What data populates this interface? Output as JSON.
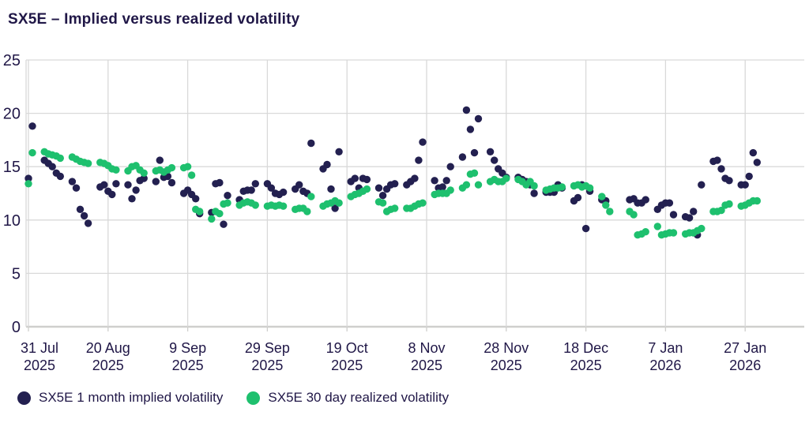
{
  "title": "SX5E – Implied versus realized volatility",
  "colors": {
    "implied": "#232050",
    "realized": "#1ec06e",
    "grid": "#d9d9d9",
    "axis_line": "#cfcfcd",
    "text": "#201747",
    "background": "#ffffff"
  },
  "legend": {
    "implied_label": "SX5E 1 month implied volatility",
    "realized_label": "SX5E 30 day realized volatility"
  },
  "chart_data": {
    "type": "scatter",
    "title": "SX5E – Implied versus realized volatility",
    "xlabel": "",
    "ylabel": "",
    "ylim": [
      0,
      25
    ],
    "y_ticks": [
      0,
      5,
      10,
      15,
      20,
      25
    ],
    "grid": true,
    "legend_position": "bottom",
    "x_tick_dates": [
      "2025-07-31",
      "2025-08-20",
      "2025-09-09",
      "2025-09-29",
      "2025-10-19",
      "2025-11-08",
      "2025-11-28",
      "2025-12-18",
      "2026-01-07",
      "2026-01-27"
    ],
    "x_tick_labels": [
      {
        "line1": "31 Jul",
        "line2": "2025"
      },
      {
        "line1": "20 Aug",
        "line2": "2025"
      },
      {
        "line1": "9 Sep",
        "line2": "2025"
      },
      {
        "line1": "29 Sep",
        "line2": "2025"
      },
      {
        "line1": "19 Oct",
        "line2": "2025"
      },
      {
        "line1": "8 Nov",
        "line2": "2025"
      },
      {
        "line1": "28 Nov",
        "line2": "2025"
      },
      {
        "line1": "18 Dec",
        "line2": "2025"
      },
      {
        "line1": "7 Jan",
        "line2": "2026"
      },
      {
        "line1": "27 Jan",
        "line2": "2026"
      }
    ],
    "x": [
      "2025-07-31",
      "2025-08-01",
      "2025-08-04",
      "2025-08-05",
      "2025-08-06",
      "2025-08-07",
      "2025-08-08",
      "2025-08-11",
      "2025-08-12",
      "2025-08-13",
      "2025-08-14",
      "2025-08-15",
      "2025-08-18",
      "2025-08-19",
      "2025-08-20",
      "2025-08-21",
      "2025-08-22",
      "2025-08-25",
      "2025-08-26",
      "2025-08-27",
      "2025-08-28",
      "2025-08-29",
      "2025-09-01",
      "2025-09-02",
      "2025-09-03",
      "2025-09-04",
      "2025-09-05",
      "2025-09-08",
      "2025-09-09",
      "2025-09-10",
      "2025-09-11",
      "2025-09-12",
      "2025-09-15",
      "2025-09-16",
      "2025-09-17",
      "2025-09-18",
      "2025-09-19",
      "2025-09-22",
      "2025-09-23",
      "2025-09-24",
      "2025-09-25",
      "2025-09-26",
      "2025-09-29",
      "2025-09-30",
      "2025-10-01",
      "2025-10-02",
      "2025-10-03",
      "2025-10-06",
      "2025-10-07",
      "2025-10-08",
      "2025-10-09",
      "2025-10-10",
      "2025-10-13",
      "2025-10-14",
      "2025-10-15",
      "2025-10-16",
      "2025-10-17",
      "2025-10-20",
      "2025-10-21",
      "2025-10-22",
      "2025-10-23",
      "2025-10-24",
      "2025-10-27",
      "2025-10-28",
      "2025-10-29",
      "2025-10-30",
      "2025-10-31",
      "2025-11-03",
      "2025-11-04",
      "2025-11-05",
      "2025-11-06",
      "2025-11-07",
      "2025-11-10",
      "2025-11-11",
      "2025-11-12",
      "2025-11-13",
      "2025-11-14",
      "2025-11-17",
      "2025-11-18",
      "2025-11-19",
      "2025-11-20",
      "2025-11-21",
      "2025-11-24",
      "2025-11-25",
      "2025-11-26",
      "2025-11-27",
      "2025-11-28",
      "2025-12-01",
      "2025-12-02",
      "2025-12-03",
      "2025-12-04",
      "2025-12-05",
      "2025-12-08",
      "2025-12-09",
      "2025-12-10",
      "2025-12-11",
      "2025-12-12",
      "2025-12-15",
      "2025-12-16",
      "2025-12-17",
      "2025-12-18",
      "2025-12-19",
      "2025-12-22",
      "2025-12-23",
      "2025-12-24",
      "2025-12-25",
      "2025-12-26",
      "2025-12-29",
      "2025-12-30",
      "2025-12-31",
      "2026-01-01",
      "2026-01-02",
      "2026-01-05",
      "2026-01-06",
      "2026-01-07",
      "2026-01-08",
      "2026-01-09",
      "2026-01-12",
      "2026-01-13",
      "2026-01-14",
      "2026-01-15",
      "2026-01-16",
      "2026-01-19",
      "2026-01-20",
      "2026-01-21",
      "2026-01-22",
      "2026-01-23",
      "2026-01-26",
      "2026-01-27",
      "2026-01-28",
      "2026-01-29",
      "2026-01-30"
    ],
    "series": [
      {
        "name": "SX5E 1 month implied volatility",
        "color_key": "implied",
        "values": [
          13.9,
          18.8,
          15.6,
          15.3,
          15.0,
          14.4,
          14.1,
          13.6,
          13.0,
          11.0,
          10.4,
          9.7,
          13.1,
          13.3,
          12.7,
          12.4,
          13.4,
          13.3,
          12.0,
          12.8,
          13.7,
          13.9,
          13.6,
          15.6,
          14.0,
          14.1,
          13.5,
          12.5,
          12.8,
          12.4,
          12.0,
          10.6,
          10.7,
          13.4,
          13.5,
          9.6,
          12.3,
          11.9,
          12.7,
          12.8,
          12.8,
          13.4,
          13.4,
          13.0,
          12.5,
          12.4,
          12.6,
          12.9,
          13.3,
          12.7,
          12.5,
          17.2,
          14.8,
          15.2,
          12.9,
          11.1,
          16.4,
          13.6,
          13.9,
          13.0,
          13.9,
          13.8,
          13.0,
          12.3,
          12.9,
          13.3,
          13.4,
          13.3,
          13.6,
          13.9,
          15.6,
          17.3,
          13.7,
          13.0,
          13.1,
          13.7,
          15.0,
          15.9,
          20.3,
          18.5,
          16.3,
          19.5,
          16.4,
          15.6,
          14.8,
          14.4,
          14.0,
          14.0,
          13.8,
          13.6,
          13.3,
          12.5,
          12.6,
          12.6,
          12.6,
          13.3,
          13.0,
          11.8,
          12.1,
          13.3,
          9.2,
          12.7,
          11.9,
          11.8,
          null,
          null,
          null,
          11.9,
          12.0,
          11.6,
          11.6,
          11.9,
          11.0,
          11.4,
          11.6,
          11.6,
          10.5,
          10.3,
          10.2,
          10.8,
          8.6,
          13.3,
          15.5,
          15.6,
          14.8,
          13.9,
          13.7,
          13.3,
          13.3,
          14.1,
          16.3,
          15.4
        ]
      },
      {
        "name": "SX5E 30 day realized volatility",
        "color_key": "realized",
        "values": [
          13.4,
          16.3,
          16.4,
          16.2,
          16.1,
          16.0,
          15.8,
          15.9,
          15.7,
          15.5,
          15.4,
          15.3,
          15.4,
          15.3,
          15.1,
          14.8,
          14.7,
          14.6,
          15.0,
          15.1,
          14.7,
          14.4,
          14.6,
          14.7,
          14.5,
          14.7,
          14.9,
          14.9,
          15.0,
          14.2,
          11.0,
          10.8,
          10.1,
          10.8,
          10.6,
          11.5,
          11.6,
          11.4,
          11.6,
          11.7,
          11.6,
          11.4,
          11.3,
          11.4,
          11.3,
          11.4,
          11.3,
          11.0,
          11.1,
          11.1,
          10.8,
          12.2,
          11.3,
          11.5,
          11.6,
          11.8,
          11.6,
          12.2,
          12.4,
          12.5,
          12.7,
          12.9,
          11.7,
          11.6,
          10.8,
          11.0,
          11.1,
          11.1,
          11.1,
          11.3,
          11.5,
          11.6,
          12.4,
          12.5,
          12.5,
          12.5,
          12.8,
          13.0,
          13.3,
          14.3,
          14.4,
          13.3,
          13.6,
          13.8,
          13.6,
          13.6,
          13.9,
          13.8,
          13.6,
          13.3,
          13.6,
          13.2,
          12.8,
          12.9,
          13.0,
          13.0,
          13.1,
          13.2,
          13.3,
          13.1,
          13.2,
          13.0,
          12.2,
          11.4,
          10.8,
          null,
          null,
          10.8,
          10.5,
          8.6,
          8.7,
          8.9,
          9.4,
          8.6,
          8.7,
          8.8,
          8.8,
          8.7,
          8.8,
          8.8,
          9.0,
          9.2,
          10.8,
          10.8,
          10.9,
          11.4,
          11.5,
          11.3,
          11.4,
          11.6,
          11.8,
          11.8
        ]
      }
    ]
  }
}
